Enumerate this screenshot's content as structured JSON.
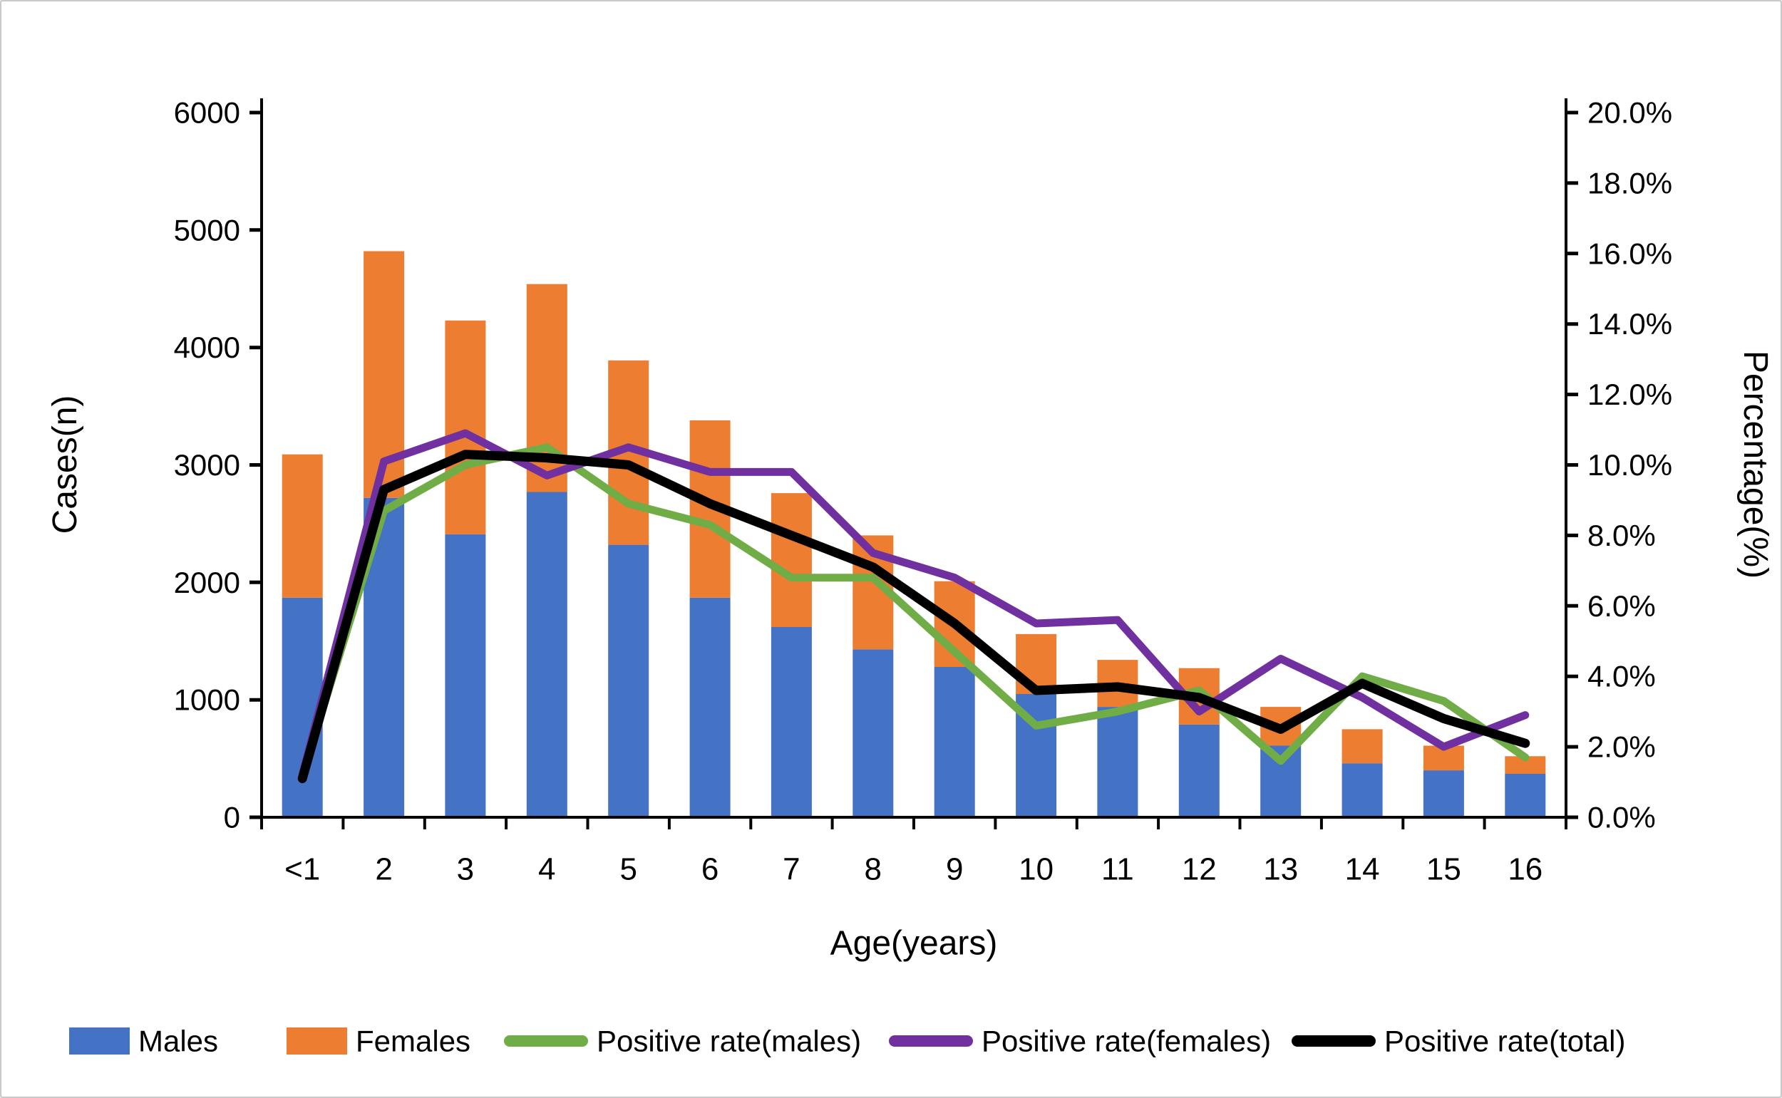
{
  "figure": {
    "type_note": "combo stacked-bar + line chart, white background, no gridlines",
    "background": "#ffffff",
    "border_color": "#c9c9c9"
  },
  "chart_data": {
    "type": "bar",
    "subtype": "stacked-bars-with-lines",
    "title": "",
    "categories": [
      "<1",
      "2",
      "3",
      "4",
      "5",
      "6",
      "7",
      "8",
      "9",
      "10",
      "11",
      "12",
      "13",
      "14",
      "15",
      "16"
    ],
    "series": [
      {
        "name": "Males",
        "type": "bar",
        "axis": "left",
        "color": "#4472C4",
        "values": [
          1870,
          2720,
          2410,
          2770,
          2320,
          1870,
          1620,
          1430,
          1280,
          1050,
          940,
          790,
          610,
          460,
          400,
          370
        ]
      },
      {
        "name": "Females",
        "type": "bar",
        "axis": "left",
        "color": "#ED7D31",
        "values": [
          1220,
          2100,
          1820,
          1770,
          1570,
          1510,
          1140,
          970,
          730,
          510,
          400,
          480,
          330,
          290,
          210,
          150
        ]
      },
      {
        "name": "Positive rate(males)",
        "type": "line",
        "axis": "right",
        "color": "#70AD47",
        "values": [
          1.2,
          8.7,
          10.0,
          10.5,
          8.9,
          8.3,
          6.8,
          6.8,
          4.7,
          2.6,
          3.0,
          3.6,
          1.6,
          4.0,
          3.3,
          1.7
        ]
      },
      {
        "name": "Positive rate(females)",
        "type": "line",
        "axis": "right",
        "color": "#7030A0",
        "values": [
          1.2,
          10.1,
          10.9,
          9.7,
          10.5,
          9.8,
          9.8,
          7.5,
          6.8,
          5.5,
          5.6,
          3.0,
          4.5,
          3.4,
          2.0,
          2.9
        ]
      },
      {
        "name": "Positive rate(total)",
        "type": "line",
        "axis": "right",
        "color": "#000000",
        "values": [
          1.1,
          9.3,
          10.3,
          10.2,
          10.0,
          8.9,
          8.0,
          7.1,
          5.5,
          3.6,
          3.7,
          3.4,
          2.5,
          3.8,
          2.8,
          2.1
        ]
      }
    ],
    "stacked_totals": [
      3090,
      4820,
      4230,
      4540,
      3890,
      3380,
      2760,
      2400,
      2010,
      1560,
      1340,
      1270,
      940,
      750,
      610,
      520
    ],
    "left_axis": {
      "label": "Cases(n)",
      "min": 0,
      "max": 6000,
      "step": 1000,
      "tick_labels": [
        "0",
        "1000",
        "2000",
        "3000",
        "4000",
        "5000",
        "6000"
      ]
    },
    "right_axis": {
      "label": "Percentage(%)",
      "min": 0,
      "max": 20,
      "step": 2,
      "tick_labels": [
        "0.0%",
        "2.0%",
        "4.0%",
        "6.0%",
        "8.0%",
        "10.0%",
        "12.0%",
        "14.0%",
        "16.0%",
        "18.0%",
        "20.0%"
      ]
    },
    "x_axis": {
      "label": "Age(years)"
    },
    "legend_position": "bottom",
    "grid": false
  }
}
